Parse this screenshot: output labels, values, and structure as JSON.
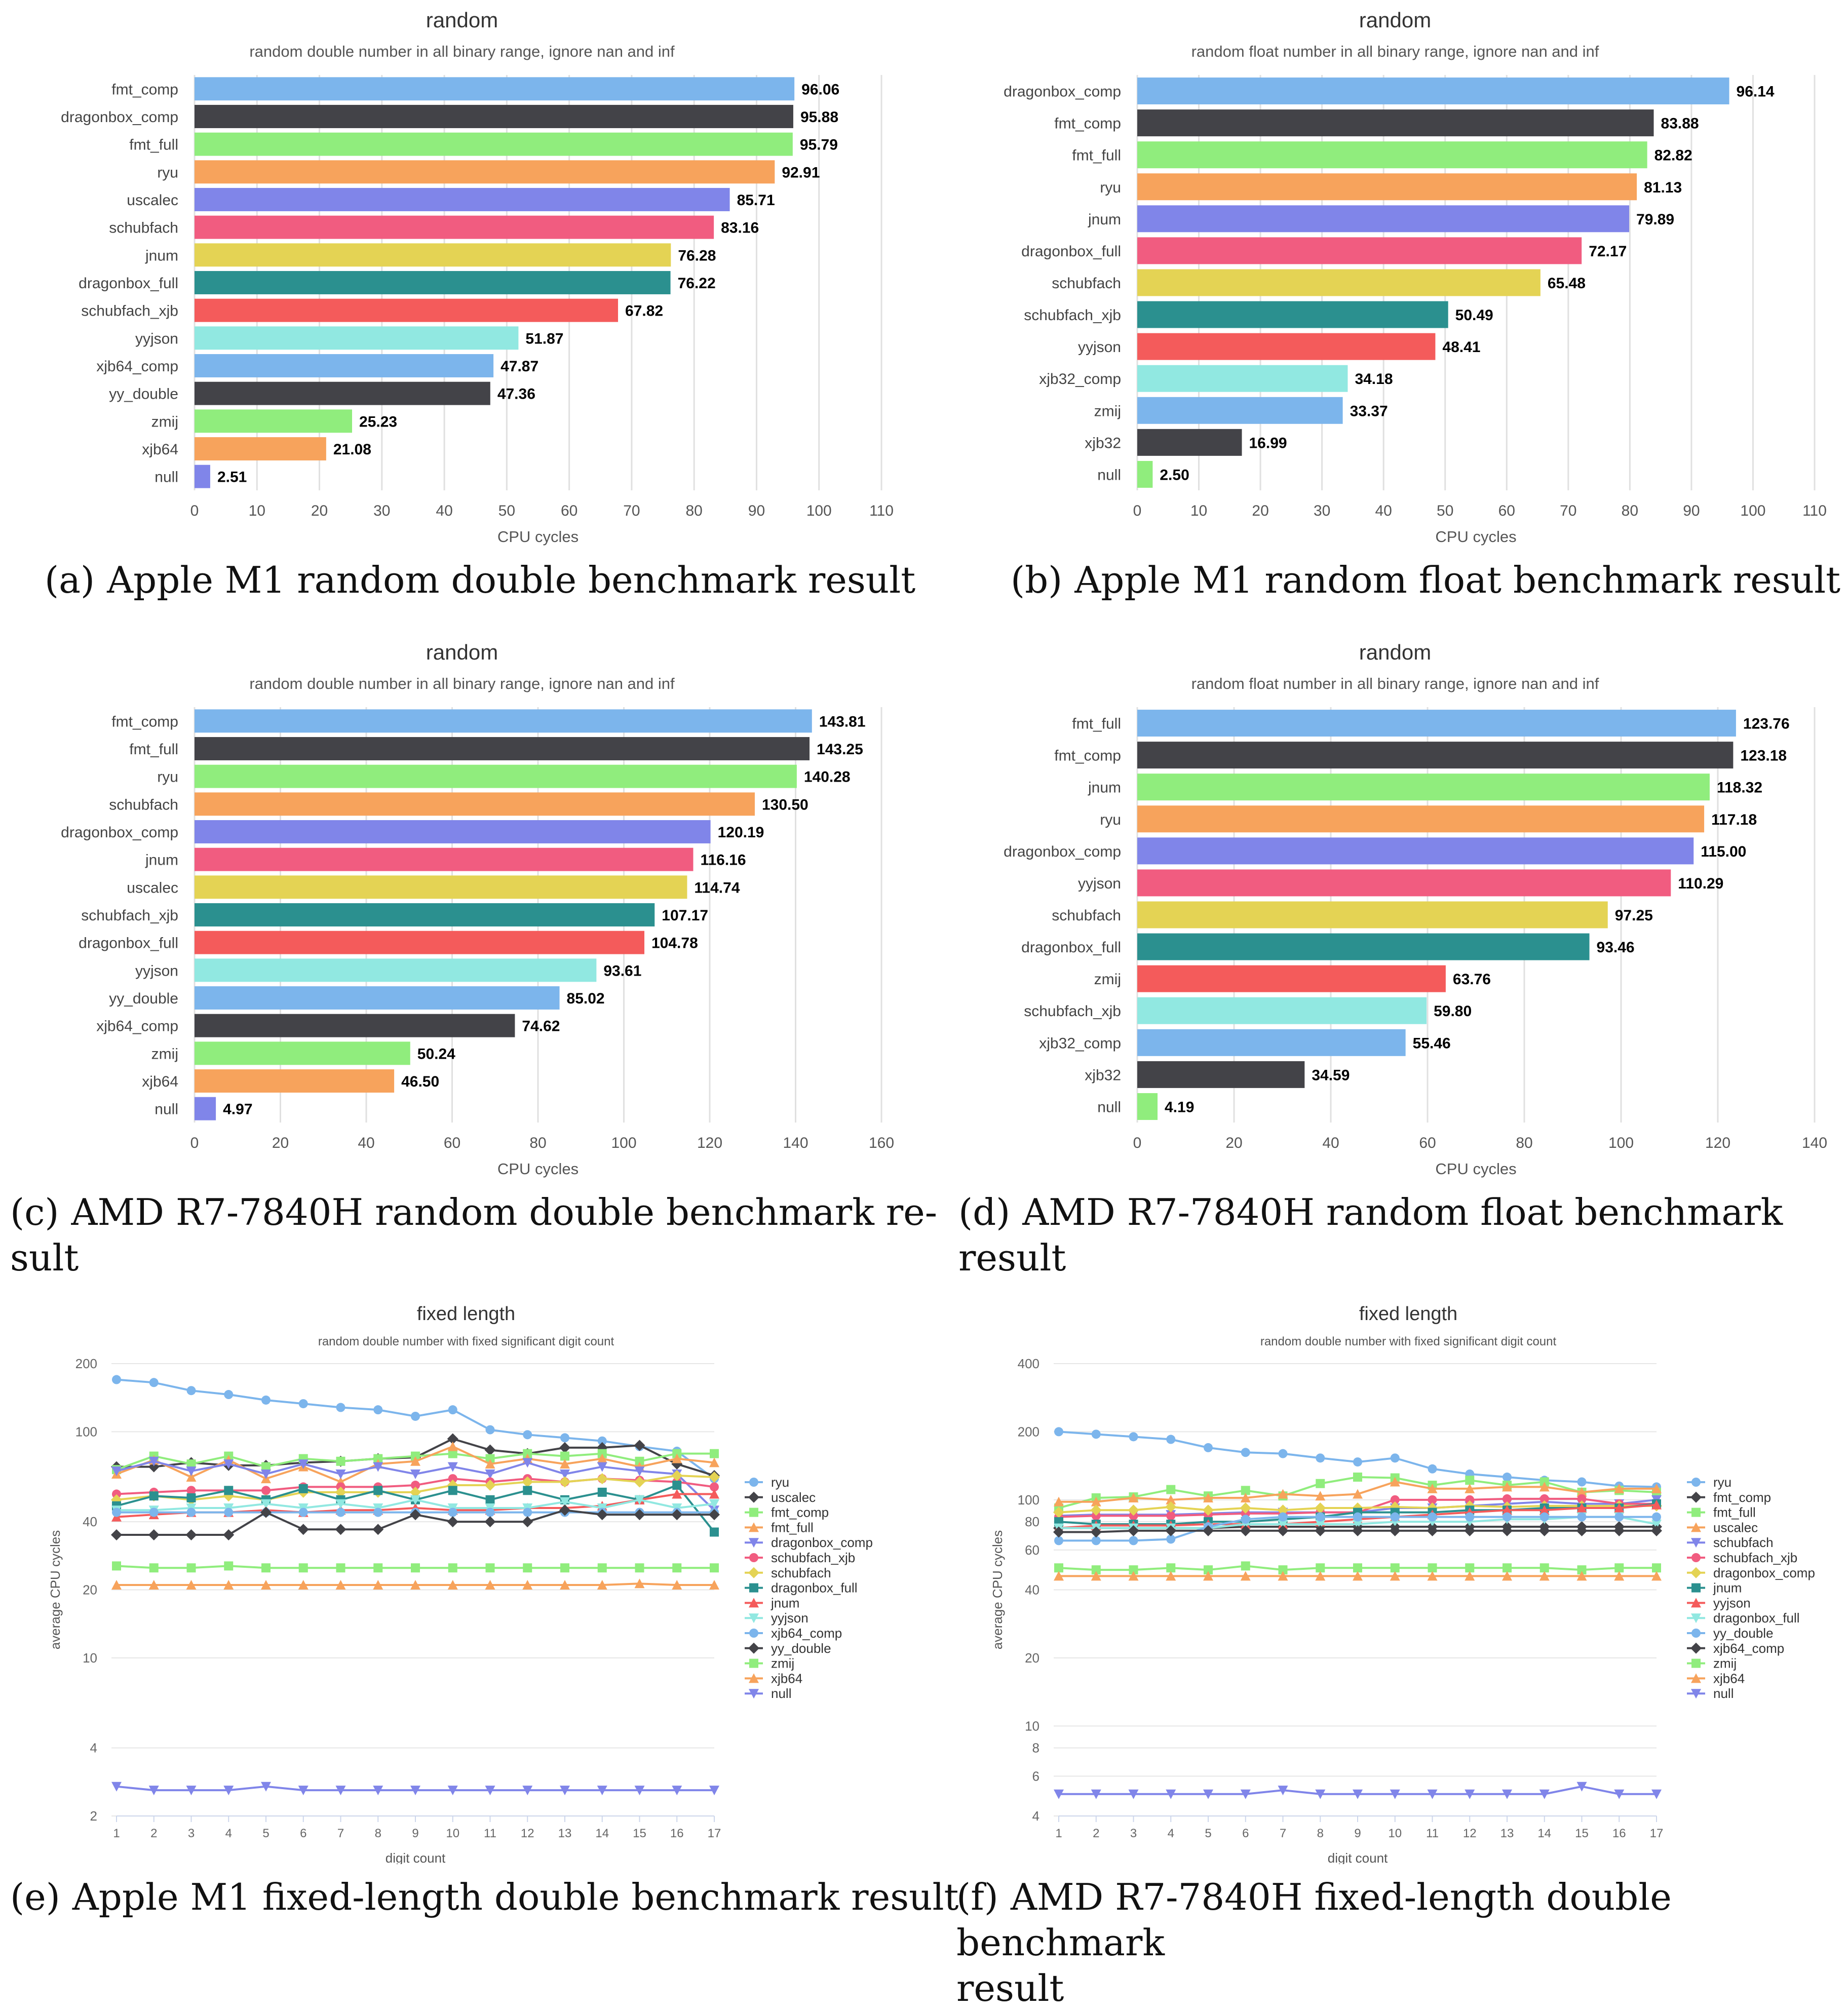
{
  "colors": [
    "#7cb5ec",
    "#434348",
    "#90ed7d",
    "#f7a35c",
    "#8085e9",
    "#f15c80",
    "#e4d354",
    "#2b908f",
    "#f45b5b",
    "#91e8e1"
  ],
  "captions": {
    "a": {
      "tag": "(a)",
      "text": "Apple M1 random double benchmark result"
    },
    "b": {
      "tag": "(b)",
      "text": "Apple M1 random float benchmark result"
    },
    "c": {
      "tag": "(c)",
      "text": "AMD R7-7840H random double benchmark re-",
      "text2": "sult"
    },
    "d": {
      "tag": "(d)",
      "text": "AMD R7-7840H random float benchmark result"
    },
    "e": {
      "tag": "(e)",
      "text": "Apple M1 fixed-length double benchmark result"
    },
    "f": {
      "tag": "(f)",
      "text": "AMD R7-7840H fixed-length double benchmark",
      "text2": "result"
    }
  },
  "chart_data": [
    {
      "id": "a",
      "type": "bar",
      "title": "random",
      "subtitle": "random double number in all binary range, ignore nan and inf",
      "xlabel": "CPU cycles",
      "xlim": [
        0,
        110
      ],
      "ticks": [
        0,
        10,
        20,
        30,
        40,
        50,
        60,
        70,
        80,
        90,
        100,
        110
      ],
      "categories": [
        "fmt_comp",
        "dragonbox_comp",
        "fmt_full",
        "ryu",
        "uscalec",
        "schubfach",
        "jnum",
        "dragonbox_full",
        "schubfach_xjb",
        "yyjson",
        "xjb64_comp",
        "yy_double",
        "zmij",
        "xjb64",
        "null"
      ],
      "values": [
        96.06,
        95.88,
        95.79,
        92.91,
        85.71,
        83.16,
        76.28,
        76.22,
        67.82,
        51.87,
        47.87,
        47.36,
        25.23,
        21.08,
        2.51
      ],
      "labels": [
        "96.06",
        "95.88",
        "95.79",
        "92.91",
        "85.71",
        "83.16",
        "76.28",
        "76.22",
        "67.82",
        "51.87",
        "47.87",
        "47.36",
        "25.23",
        "21.08",
        "2.51"
      ]
    },
    {
      "id": "b",
      "type": "bar",
      "title": "random",
      "subtitle": "random float number in all binary range, ignore nan and inf",
      "xlabel": "CPU cycles",
      "xlim": [
        0,
        110
      ],
      "ticks": [
        0,
        10,
        20,
        30,
        40,
        50,
        60,
        70,
        80,
        90,
        100,
        110
      ],
      "categories": [
        "dragonbox_comp",
        "fmt_comp",
        "fmt_full",
        "ryu",
        "jnum",
        "dragonbox_full",
        "schubfach",
        "schubfach_xjb",
        "yyjson",
        "xjb32_comp",
        "zmij",
        "xjb32",
        "null"
      ],
      "values": [
        96.14,
        83.88,
        82.82,
        81.13,
        79.89,
        72.17,
        65.48,
        50.49,
        48.41,
        34.18,
        33.37,
        16.99,
        2.5
      ],
      "labels": [
        "96.14",
        "83.88",
        "82.82",
        "81.13",
        "79.89",
        "72.17",
        "65.48",
        "50.49",
        "48.41",
        "34.18",
        "33.37",
        "16.99",
        "2.50"
      ]
    },
    {
      "id": "c",
      "type": "bar",
      "title": "random",
      "subtitle": "random double number in all binary range, ignore nan and inf",
      "xlabel": "CPU cycles",
      "xlim": [
        0,
        160
      ],
      "ticks": [
        0,
        20,
        40,
        60,
        80,
        100,
        120,
        140,
        160
      ],
      "categories": [
        "fmt_comp",
        "fmt_full",
        "ryu",
        "schubfach",
        "dragonbox_comp",
        "jnum",
        "uscalec",
        "schubfach_xjb",
        "dragonbox_full",
        "yyjson",
        "yy_double",
        "xjb64_comp",
        "zmij",
        "xjb64",
        "null"
      ],
      "values": [
        143.81,
        143.25,
        140.28,
        130.5,
        120.19,
        116.16,
        114.74,
        107.17,
        104.78,
        93.61,
        85.02,
        74.62,
        50.24,
        46.5,
        4.97
      ],
      "labels": [
        "143.81",
        "143.25",
        "140.28",
        "130.50",
        "120.19",
        "116.16",
        "114.74",
        "107.17",
        "104.78",
        "93.61",
        "85.02",
        "74.62",
        "50.24",
        "46.50",
        "4.97"
      ]
    },
    {
      "id": "d",
      "type": "bar",
      "title": "random",
      "subtitle": "random float number in all binary range, ignore nan and inf",
      "xlabel": "CPU cycles",
      "xlim": [
        0,
        140
      ],
      "ticks": [
        0,
        20,
        40,
        60,
        80,
        100,
        120,
        140
      ],
      "categories": [
        "fmt_full",
        "fmt_comp",
        "jnum",
        "ryu",
        "dragonbox_comp",
        "yyjson",
        "schubfach",
        "dragonbox_full",
        "zmij",
        "schubfach_xjb",
        "xjb32_comp",
        "xjb32",
        "null"
      ],
      "values": [
        123.76,
        123.18,
        118.32,
        117.18,
        115.0,
        110.29,
        97.25,
        93.46,
        63.76,
        59.8,
        55.46,
        34.59,
        4.19
      ],
      "labels": [
        "123.76",
        "123.18",
        "118.32",
        "117.18",
        "115.00",
        "110.29",
        "97.25",
        "93.46",
        "63.76",
        "59.80",
        "55.46",
        "34.59",
        "4.19"
      ]
    },
    {
      "id": "e",
      "type": "line",
      "yscale": "log",
      "title": "fixed length",
      "subtitle": "random double number with fixed significant digit count",
      "xlabel": "digit count",
      "ylabel": "average CPU cycles",
      "ylim": [
        2,
        200
      ],
      "yticks": [
        2,
        4,
        10,
        20,
        40,
        100,
        200
      ],
      "x": [
        1,
        2,
        3,
        4,
        5,
        6,
        7,
        8,
        9,
        10,
        11,
        12,
        13,
        14,
        15,
        16,
        17
      ],
      "series": [
        {
          "name": "ryu",
          "color": "#7cb5ec",
          "marker": "circle",
          "values": [
            170,
            165,
            152,
            146,
            138,
            133,
            128,
            125,
            117,
            125,
            102,
            97,
            94,
            91,
            86,
            82,
            62
          ]
        },
        {
          "name": "uscalec",
          "color": "#434348",
          "marker": "diamond",
          "values": [
            70,
            70,
            73,
            71,
            71,
            73,
            74,
            76,
            77,
            93,
            83,
            80,
            85,
            85,
            87,
            72,
            64
          ]
        },
        {
          "name": "fmt_comp",
          "color": "#90ed7d",
          "marker": "square",
          "values": [
            68,
            78,
            72,
            78,
            70,
            76,
            74,
            76,
            78,
            80,
            76,
            80,
            78,
            80,
            74,
            80,
            80
          ]
        },
        {
          "name": "fmt_full",
          "color": "#f7a35c",
          "marker": "triangle",
          "values": [
            65,
            75,
            63,
            75,
            62,
            70,
            60,
            72,
            74,
            86,
            72,
            76,
            72,
            76,
            70,
            76,
            73
          ]
        },
        {
          "name": "dragonbox_comp",
          "color": "#8085e9",
          "marker": "triangle-down",
          "values": [
            67,
            74,
            67,
            72,
            65,
            72,
            65,
            70,
            65,
            70,
            65,
            73,
            65,
            70,
            67,
            65,
            45
          ]
        },
        {
          "name": "schubfach_xjb",
          "color": "#f15c80",
          "marker": "circle",
          "values": [
            53,
            54,
            55,
            55,
            55,
            57,
            57,
            57,
            58,
            62,
            60,
            62,
            60,
            62,
            61,
            60,
            57
          ]
        },
        {
          "name": "schubfach",
          "color": "#e4d354",
          "marker": "diamond",
          "values": [
            50,
            52,
            50,
            52,
            50,
            54,
            54,
            54,
            54,
            58,
            58,
            60,
            60,
            62,
            60,
            64,
            63
          ]
        },
        {
          "name": "dragonbox_full",
          "color": "#2b908f",
          "marker": "square",
          "values": [
            47,
            52,
            51,
            55,
            50,
            56,
            50,
            55,
            50,
            55,
            50,
            55,
            50,
            54,
            50,
            58,
            36
          ]
        },
        {
          "name": "jnum",
          "color": "#f45b5b",
          "marker": "triangle",
          "values": [
            42,
            43,
            44,
            44,
            45,
            44,
            45,
            45,
            46,
            45,
            45,
            46,
            46,
            47,
            50,
            53,
            53
          ]
        },
        {
          "name": "yyjson",
          "color": "#91e8e1",
          "marker": "triangle-down",
          "values": [
            45,
            45,
            46,
            46,
            48,
            46,
            48,
            46,
            50,
            46,
            46,
            46,
            49,
            46,
            50,
            46,
            48
          ]
        },
        {
          "name": "xjb64_comp",
          "color": "#7cb5ec",
          "marker": "circle",
          "values": [
            44,
            44,
            44,
            44,
            44,
            44,
            44,
            44,
            44,
            44,
            44,
            44,
            44,
            44,
            44,
            44,
            44
          ]
        },
        {
          "name": "yy_double",
          "color": "#434348",
          "marker": "diamond",
          "values": [
            35,
            35,
            35,
            35,
            44,
            37,
            37,
            37,
            43,
            40,
            40,
            40,
            45,
            43,
            43,
            43,
            43
          ]
        },
        {
          "name": "zmij",
          "color": "#90ed7d",
          "marker": "square",
          "values": [
            25.5,
            25,
            25,
            25.5,
            25,
            25,
            25,
            25,
            25,
            25,
            25,
            25,
            25,
            25,
            25,
            25,
            25
          ]
        },
        {
          "name": "xjb64",
          "color": "#f7a35c",
          "marker": "triangle",
          "values": [
            21,
            21,
            21,
            21,
            21,
            21,
            21,
            21,
            21,
            21,
            21,
            21,
            21,
            21,
            21.3,
            21,
            21
          ]
        },
        {
          "name": "null",
          "color": "#8085e9",
          "marker": "triangle-down",
          "values": [
            2.7,
            2.6,
            2.6,
            2.6,
            2.7,
            2.6,
            2.6,
            2.6,
            2.6,
            2.6,
            2.6,
            2.6,
            2.6,
            2.6,
            2.6,
            2.6,
            2.6
          ]
        }
      ]
    },
    {
      "id": "f",
      "type": "line",
      "yscale": "log",
      "title": "fixed length",
      "subtitle": "random double number with fixed significant digit count",
      "xlabel": "digit count",
      "ylabel": "average CPU cycles",
      "ylim": [
        4,
        400
      ],
      "yticks": [
        4,
        6,
        8,
        10,
        20,
        40,
        60,
        80,
        100,
        200,
        400
      ],
      "x": [
        1,
        2,
        3,
        4,
        5,
        6,
        7,
        8,
        9,
        10,
        11,
        12,
        13,
        14,
        15,
        16,
        17
      ],
      "series": [
        {
          "name": "ryu",
          "color": "#7cb5ec",
          "marker": "circle",
          "values": [
            200,
            195,
            190,
            185,
            170,
            162,
            160,
            153,
            147,
            153,
            137,
            130,
            126,
            122,
            120,
            115,
            114
          ]
        },
        {
          "name": "fmt_comp",
          "color": "#434348",
          "marker": "diamond",
          "values": [
            75,
            75,
            75,
            75,
            75,
            76,
            76,
            76,
            76,
            76,
            76,
            76,
            76,
            76,
            76,
            76,
            76
          ]
        },
        {
          "name": "fmt_full",
          "color": "#90ed7d",
          "marker": "square",
          "values": [
            92,
            102,
            103,
            111,
            104,
            110,
            104,
            118,
            126,
            125,
            116,
            122,
            116,
            120,
            108,
            110,
            108
          ]
        },
        {
          "name": "uscalec",
          "color": "#f7a35c",
          "marker": "triangle",
          "values": [
            98,
            98,
            102,
            100,
            102,
            102,
            106,
            104,
            106,
            120,
            112,
            112,
            114,
            114,
            108,
            112,
            112
          ]
        },
        {
          "name": "schubfach",
          "color": "#8085e9",
          "marker": "triangle-down",
          "values": [
            85,
            86,
            86,
            86,
            87,
            88,
            88,
            88,
            88,
            92,
            92,
            94,
            96,
            98,
            96,
            96,
            100
          ]
        },
        {
          "name": "schubfach_xjb",
          "color": "#f15c80",
          "marker": "circle",
          "values": [
            84,
            85,
            85,
            85,
            86,
            87,
            87,
            88,
            88,
            100,
            100,
            100,
            101,
            101,
            101,
            96,
            96
          ]
        },
        {
          "name": "dragonbox_comp",
          "color": "#e4d354",
          "marker": "diamond",
          "values": [
            88,
            90,
            90,
            93,
            90,
            92,
            90,
            92,
            92,
            93,
            92,
            94,
            93,
            94,
            94,
            94,
            94
          ]
        },
        {
          "name": "jnum",
          "color": "#2b908f",
          "marker": "square",
          "values": [
            80,
            78,
            78,
            78,
            80,
            80,
            82,
            84,
            88,
            88,
            88,
            90,
            90,
            92,
            92,
            92,
            96
          ]
        },
        {
          "name": "yyjson",
          "color": "#f45b5b",
          "marker": "triangle",
          "values": [
            75,
            77,
            77,
            77,
            78,
            78,
            78,
            80,
            82,
            84,
            86,
            88,
            90,
            90,
            92,
            92,
            95
          ]
        },
        {
          "name": "dragonbox_full",
          "color": "#91e8e1",
          "marker": "triangle-down",
          "values": [
            75,
            75,
            75,
            75,
            75,
            78,
            78,
            78,
            78,
            80,
            80,
            80,
            82,
            82,
            84,
            84,
            78
          ]
        },
        {
          "name": "yy_double",
          "color": "#7cb5ec",
          "marker": "circle",
          "values": [
            66,
            66,
            66,
            67,
            76,
            82,
            84,
            84,
            84,
            84,
            84,
            84,
            84,
            84,
            84,
            84,
            84
          ]
        },
        {
          "name": "xjb64_comp",
          "color": "#434348",
          "marker": "diamond",
          "values": [
            72,
            72,
            73,
            73,
            73,
            73,
            73,
            73,
            73,
            73,
            73,
            73,
            73,
            73,
            73,
            73,
            73
          ]
        },
        {
          "name": "zmij",
          "color": "#90ed7d",
          "marker": "square",
          "values": [
            50,
            49,
            49,
            50,
            49,
            51,
            49,
            50,
            50,
            50,
            50,
            50,
            50,
            50,
            49,
            50,
            50
          ]
        },
        {
          "name": "xjb64",
          "color": "#f7a35c",
          "marker": "triangle",
          "values": [
            46,
            46,
            46,
            46,
            46,
            46,
            46,
            46,
            46,
            46,
            46,
            46,
            46,
            46,
            46,
            46,
            46
          ]
        },
        {
          "name": "null",
          "color": "#8085e9",
          "marker": "triangle-down",
          "values": [
            5,
            5,
            5,
            5,
            5,
            5,
            5.2,
            5,
            5,
            5,
            5,
            5,
            5,
            5,
            5.4,
            5,
            5
          ]
        }
      ]
    }
  ]
}
